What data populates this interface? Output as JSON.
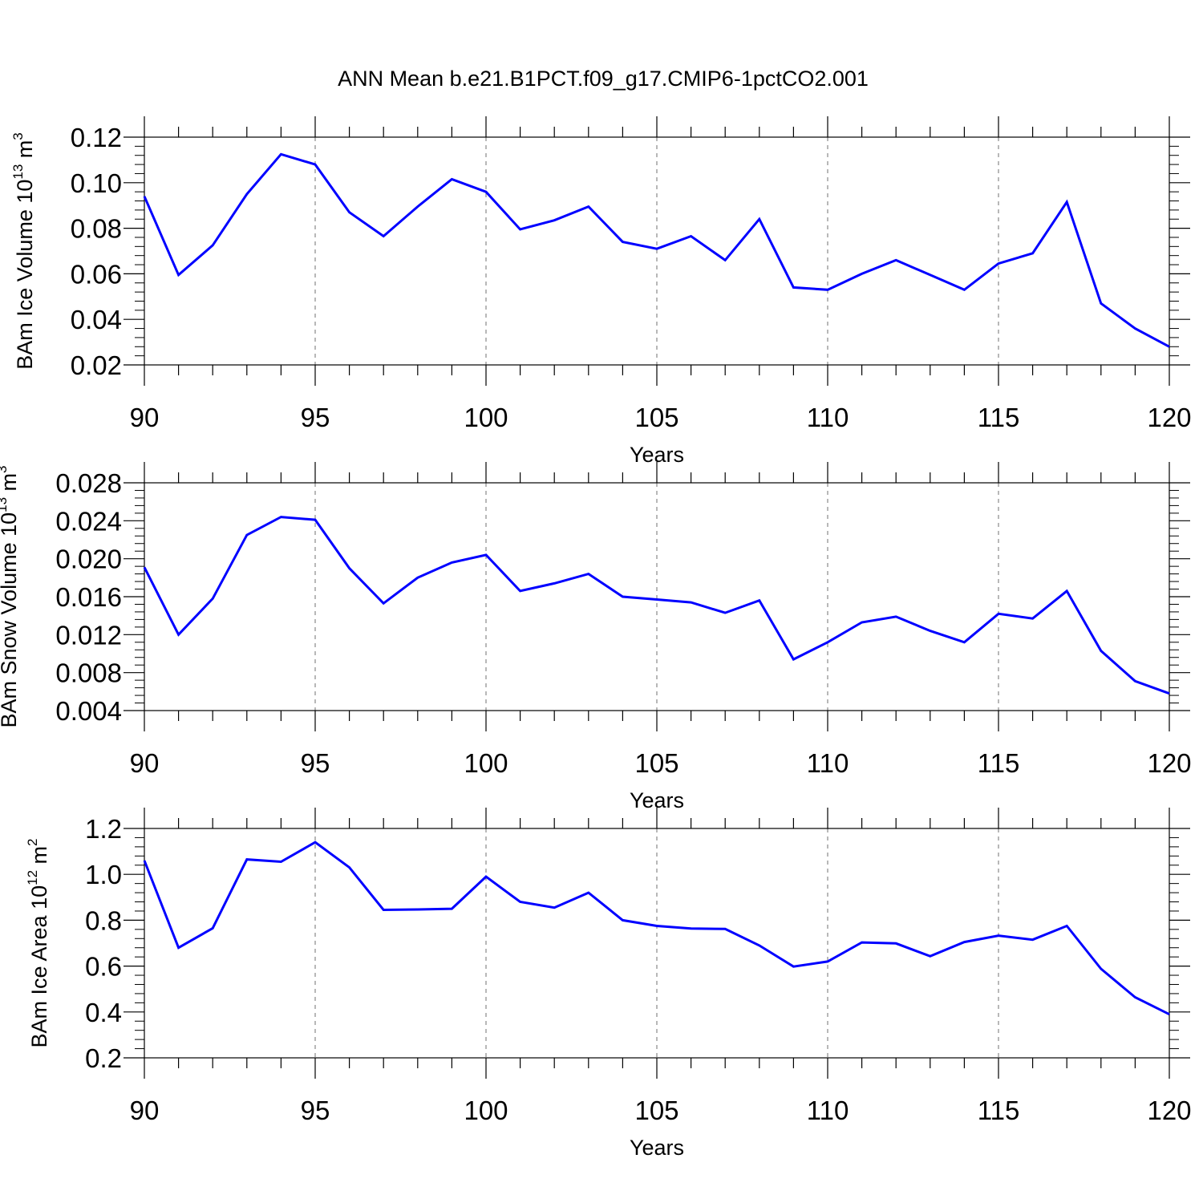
{
  "figure": {
    "title": "ANN Mean b.e21.B1PCT.f09_g17.CMIP6-1pctCO2.001"
  },
  "chart_data": [
    {
      "type": "line",
      "title": "ANN Mean b.e21.B1PCT.f09_g17.CMIP6-1pctCO2.001",
      "xlabel": "Years",
      "ylabel": "BAm Ice Volume 10 13 m 3",
      "ylabel_parts": {
        "base": "BAm Ice Volume 10",
        "exp": "13",
        "unit": " m",
        "unit_exp": "3"
      },
      "xlim": [
        90,
        120
      ],
      "ylim": [
        0.02,
        0.12
      ],
      "xticks": [
        90,
        95,
        100,
        105,
        110,
        115,
        120
      ],
      "xtick_labels": [
        "90",
        "95",
        "100",
        "105",
        "110",
        "115",
        "120"
      ],
      "yticks": [
        0.02,
        0.04,
        0.06,
        0.08,
        0.1,
        0.12
      ],
      "ytick_labels": [
        "0.02",
        "0.04",
        "0.06",
        "0.08",
        "0.10",
        "0.12"
      ],
      "grid_x": "dashed at labeled ticks",
      "color": "#0000ff",
      "x": [
        90,
        91,
        92,
        93,
        94,
        95,
        96,
        97,
        98,
        99,
        100,
        101,
        102,
        103,
        104,
        105,
        106,
        107,
        108,
        109,
        110,
        111,
        112,
        113,
        114,
        115,
        116,
        117,
        118,
        119,
        120
      ],
      "values": [
        0.094,
        0.0595,
        0.0725,
        0.095,
        0.1125,
        0.108,
        0.087,
        0.0765,
        0.0895,
        0.1015,
        0.096,
        0.0795,
        0.0835,
        0.0895,
        0.074,
        0.071,
        0.0765,
        0.066,
        0.084,
        0.054,
        0.053,
        0.06,
        0.066,
        0.0595,
        0.053,
        0.0645,
        0.069,
        0.0915,
        0.047,
        0.036,
        0.028
      ]
    },
    {
      "type": "line",
      "xlabel": "Years",
      "ylabel": "BAm Snow Volume 10 13 m 3",
      "ylabel_parts": {
        "base": "BAm Snow Volume 10",
        "exp": "13",
        "unit": " m",
        "unit_exp": "3"
      },
      "xlim": [
        90,
        120
      ],
      "ylim": [
        0.004,
        0.028
      ],
      "xticks": [
        90,
        95,
        100,
        105,
        110,
        115,
        120
      ],
      "xtick_labels": [
        "90",
        "95",
        "100",
        "105",
        "110",
        "115",
        "120"
      ],
      "yticks": [
        0.004,
        0.008,
        0.012,
        0.016,
        0.02,
        0.024,
        0.028
      ],
      "ytick_labels": [
        "0.004",
        "0.008",
        "0.012",
        "0.016",
        "0.020",
        "0.024",
        "0.028"
      ],
      "grid_x": "dashed at labeled ticks",
      "color": "#0000ff",
      "x": [
        90,
        91,
        92,
        93,
        94,
        95,
        96,
        97,
        98,
        99,
        100,
        101,
        102,
        103,
        104,
        105,
        106,
        107,
        108,
        109,
        110,
        111,
        112,
        113,
        114,
        115,
        116,
        117,
        118,
        119,
        120
      ],
      "values": [
        0.0191,
        0.012,
        0.0158,
        0.0225,
        0.0244,
        0.0241,
        0.019,
        0.0153,
        0.018,
        0.0196,
        0.0204,
        0.0166,
        0.0174,
        0.0184,
        0.016,
        0.0157,
        0.0154,
        0.0143,
        0.0156,
        0.0094,
        0.0112,
        0.0133,
        0.0139,
        0.0124,
        0.0112,
        0.0142,
        0.0137,
        0.0166,
        0.0103,
        0.0071,
        0.0058
      ]
    },
    {
      "type": "line",
      "xlabel": "Years",
      "ylabel": "BAm Ice Area 10 12 m 2",
      "ylabel_parts": {
        "base": "BAm Ice Area 10",
        "exp": "12",
        "unit": " m",
        "unit_exp": "2"
      },
      "xlim": [
        90,
        120
      ],
      "ylim": [
        0.2,
        1.2
      ],
      "xticks": [
        90,
        95,
        100,
        105,
        110,
        115,
        120
      ],
      "xtick_labels": [
        "90",
        "95",
        "100",
        "105",
        "110",
        "115",
        "120"
      ],
      "yticks": [
        0.2,
        0.4,
        0.6,
        0.8,
        1.0,
        1.2
      ],
      "ytick_labels": [
        "0.2",
        "0.4",
        "0.6",
        "0.8",
        "1.0",
        "1.2"
      ],
      "grid_x": "dashed at labeled ticks",
      "color": "#0000ff",
      "x": [
        90,
        91,
        92,
        93,
        94,
        95,
        96,
        97,
        98,
        99,
        100,
        101,
        102,
        103,
        104,
        105,
        106,
        107,
        108,
        109,
        110,
        111,
        112,
        113,
        114,
        115,
        116,
        117,
        118,
        119,
        120
      ],
      "values": [
        1.06,
        0.68,
        0.765,
        1.065,
        1.055,
        1.14,
        1.03,
        0.845,
        0.847,
        0.85,
        0.99,
        0.88,
        0.855,
        0.92,
        0.8,
        0.775,
        0.764,
        0.762,
        0.69,
        0.598,
        0.62,
        0.703,
        0.699,
        0.643,
        0.705,
        0.733,
        0.715,
        0.775,
        0.588,
        0.464,
        0.39
      ]
    }
  ]
}
